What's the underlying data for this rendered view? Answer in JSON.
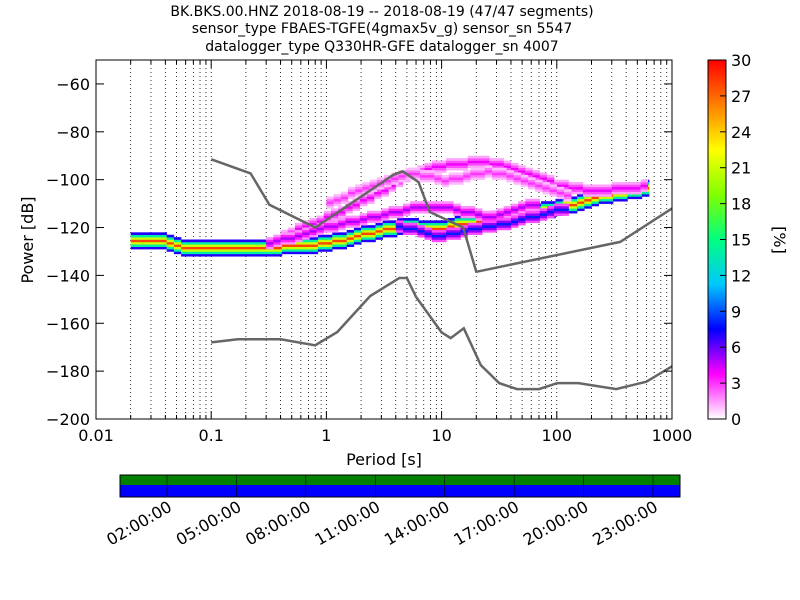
{
  "chart_data": {
    "type": "heatmap",
    "title_lines": [
      "BK.BKS.00.HNZ   2018-08-19 -- 2018-08-19  (47/47 segments)",
      "sensor_type FBAES-TGFE(4gmax5v_g) sensor_sn 5547",
      "datalogger_type Q330HR-GFE datalogger_sn 4007"
    ],
    "xlabel": "Period [s]",
    "ylabel": "Power [dB]",
    "x_scale": "log",
    "xlim": [
      0.01,
      1000
    ],
    "ylim": [
      -200,
      -50
    ],
    "x_ticks": [
      {
        "value": 0.01,
        "label": "0.01"
      },
      {
        "value": 0.1,
        "label": "0.1"
      },
      {
        "value": 1,
        "label": "1"
      },
      {
        "value": 10,
        "label": "10"
      },
      {
        "value": 100,
        "label": "100"
      },
      {
        "value": 1000,
        "label": "1000"
      }
    ],
    "y_ticks": [
      {
        "value": -60,
        "label": "−60"
      },
      {
        "value": -80,
        "label": "−80"
      },
      {
        "value": -100,
        "label": "−100"
      },
      {
        "value": -120,
        "label": "−120"
      },
      {
        "value": -140,
        "label": "−140"
      },
      {
        "value": -160,
        "label": "−160"
      },
      {
        "value": -180,
        "label": "−180"
      },
      {
        "value": -200,
        "label": "−200"
      }
    ],
    "grid": "dotted vertical at log sub-decades",
    "colorbar": {
      "label": "[%]",
      "range": [
        0,
        30
      ],
      "ticks": [
        {
          "value": 0,
          "label": "0"
        },
        {
          "value": 3,
          "label": "3"
        },
        {
          "value": 6,
          "label": "6"
        },
        {
          "value": 9,
          "label": "9"
        },
        {
          "value": 12,
          "label": "12"
        },
        {
          "value": 15,
          "label": "15"
        },
        {
          "value": 18,
          "label": "18"
        },
        {
          "value": 21,
          "label": "21"
        },
        {
          "value": 24,
          "label": "24"
        },
        {
          "value": 27,
          "label": "27"
        },
        {
          "value": 30,
          "label": "30"
        }
      ],
      "colors": [
        "#ffffff",
        "#ff00ff",
        "#0000ff",
        "#00c8ff",
        "#00ff80",
        "#80ff00",
        "#ffff00",
        "#ff8000",
        "#ff0000"
      ]
    },
    "noise_models": [
      {
        "name": "NHNM",
        "x": [
          0.1,
          0.22,
          0.32,
          0.8,
          3.8,
          4.6,
          6.3,
          7.9,
          15.4,
          20,
          354.8,
          1000
        ],
        "y": [
          -91.5,
          -97.4,
          -110.5,
          -120,
          -98,
          -96.5,
          -101,
          -113.5,
          -120,
          -138.5,
          -126,
          -112
        ]
      },
      {
        "name": "NLNM",
        "x": [
          0.1,
          0.17,
          0.4,
          0.8,
          1.24,
          2.4,
          4.3,
          5,
          6,
          10,
          12,
          15.6,
          21.9,
          31.6,
          45,
          70,
          101,
          154,
          328,
          600,
          1000
        ],
        "y": [
          -168,
          -166.7,
          -166.7,
          -169.2,
          -163.7,
          -148.6,
          -141.1,
          -141.1,
          -149,
          -163.8,
          -166.2,
          -162.1,
          -177.5,
          -185,
          -187.5,
          -187.5,
          -185,
          -185,
          -187.5,
          -184.4,
          -178
        ]
      }
    ],
    "psd_bands": [
      {
        "name": "main",
        "x": [
          0.02,
          0.03,
          0.05,
          0.08,
          0.1,
          0.2,
          0.4,
          0.7,
          1,
          1.5,
          2.2,
          3.2,
          4.5,
          6,
          8,
          11,
          15,
          20,
          30,
          50,
          80,
          120,
          200,
          350,
          600
        ],
        "y": [
          -126.5,
          -125.5,
          -128.5,
          -129.5,
          -129.3,
          -128.6,
          -128.5,
          -128,
          -126.5,
          -125,
          -123,
          -121,
          -120,
          -120.5,
          -121.5,
          -120,
          -119,
          -118,
          -117,
          -115,
          -113,
          -111,
          -108,
          -106,
          -103.5
        ],
        "spread": 3,
        "intensity": 28
      },
      {
        "name": "upper-1",
        "x": [
          0.4,
          1,
          2,
          3.5,
          5,
          8,
          12,
          20,
          35,
          60,
          100,
          200,
          400,
          600
        ],
        "y": [
          -124,
          -116,
          -109,
          -103,
          -98,
          -95,
          -94,
          -93,
          -95,
          -99,
          -103,
          -105,
          -104,
          -103
        ],
        "spread": 2,
        "intensity": 4
      },
      {
        "name": "upper-2",
        "x": [
          1,
          2,
          3.5,
          5,
          7,
          10,
          15,
          25,
          40,
          70,
          120
        ],
        "y": [
          -110,
          -104,
          -100,
          -98,
          -99,
          -101,
          -99,
          -97,
          -100,
          -104,
          -107
        ],
        "spread": 2,
        "intensity": 3
      },
      {
        "name": "mid",
        "x": [
          0.3,
          0.6,
          1,
          2,
          3.5,
          6,
          10,
          15,
          25,
          40,
          70
        ],
        "y": [
          -127,
          -123,
          -120,
          -117,
          -114,
          -112,
          -112,
          -114,
          -116,
          -113,
          -110
        ],
        "spread": 2,
        "intensity": 5
      },
      {
        "name": "lower",
        "x": [
          4,
          6,
          9,
          12,
          16,
          25,
          40,
          70,
          120
        ],
        "y": [
          -120,
          -122,
          -124,
          -123,
          -121,
          -120,
          -118,
          -115,
          -112
        ],
        "spread": 2,
        "intensity": 8
      }
    ],
    "timeline": {
      "ticks": [
        "02:00:00",
        "05:00:00",
        "08:00:00",
        "11:00:00",
        "14:00:00",
        "17:00:00",
        "20:00:00",
        "23:00:00"
      ],
      "top_color": "#008000",
      "bottom_color": "#0000ff"
    }
  }
}
